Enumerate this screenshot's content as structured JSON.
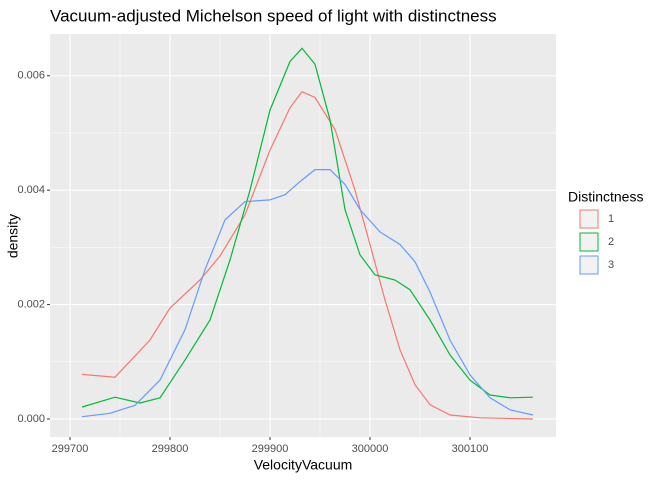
{
  "chart_data": {
    "type": "line",
    "title": "Vacuum-adjusted Michelson speed of light with distinctness",
    "x_label": "VelocityVacuum",
    "y_label": "density",
    "legend_title": "Distinctness",
    "legend_position": "right",
    "grid": true,
    "xlim": [
      299680,
      300186
    ],
    "ylim": [
      -0.000315,
      0.00673
    ],
    "xticks": [
      299700,
      299800,
      299900,
      300000,
      300100
    ],
    "yticks": [
      {
        "value": 0,
        "label": "0.000"
      },
      0.002,
      0.004,
      0.006
    ],
    "series": [
      {
        "name": "1",
        "color": "#F8766D",
        "x": [
          299712,
          299725,
          299745,
          299780,
          299800,
          299830,
          299850,
          299875,
          299900,
          299920,
          299932,
          299945,
          299965,
          299985,
          300000,
          300015,
          300030,
          300045,
          300060,
          300080,
          300110,
          300163
        ],
        "values": [
          0.00078,
          0.00076,
          0.00073,
          0.00138,
          0.00194,
          0.00243,
          0.00285,
          0.00357,
          0.0047,
          0.00544,
          0.00572,
          0.00562,
          0.00506,
          0.004,
          0.00305,
          0.00208,
          0.00121,
          0.0006,
          0.00025,
          7e-05,
          2e-05,
          0
        ]
      },
      {
        "name": "2",
        "color": "#00BA38",
        "x": [
          299712,
          299745,
          299770,
          299790,
          299815,
          299840,
          299860,
          299880,
          299900,
          299920,
          299932,
          299945,
          299960,
          299975,
          299990,
          300005,
          300025,
          300040,
          300060,
          300080,
          300100,
          300120,
          300140,
          300163
        ],
        "values": [
          0.00021,
          0.00038,
          0.00028,
          0.00037,
          0.00103,
          0.00173,
          0.00278,
          0.004,
          0.0054,
          0.00625,
          0.00648,
          0.0062,
          0.00523,
          0.00366,
          0.00287,
          0.00252,
          0.00243,
          0.00226,
          0.00173,
          0.00112,
          0.00068,
          0.00042,
          0.00037,
          0.00038
        ]
      },
      {
        "name": "3",
        "color": "#619CFF",
        "x": [
          299712,
          299740,
          299765,
          299790,
          299815,
          299835,
          299855,
          299875,
          299900,
          299915,
          299930,
          299945,
          299960,
          299975,
          299990,
          300010,
          300030,
          300045,
          300060,
          300080,
          300100,
          300120,
          300140,
          300163
        ],
        "values": [
          4e-05,
          0.0001,
          0.00024,
          0.00068,
          0.00156,
          0.00261,
          0.00348,
          0.0038,
          0.00383,
          0.00392,
          0.00415,
          0.00436,
          0.00436,
          0.0041,
          0.00366,
          0.00327,
          0.00305,
          0.00275,
          0.00222,
          0.00138,
          0.00077,
          0.00037,
          0.00016,
          7e-05
        ]
      }
    ]
  }
}
